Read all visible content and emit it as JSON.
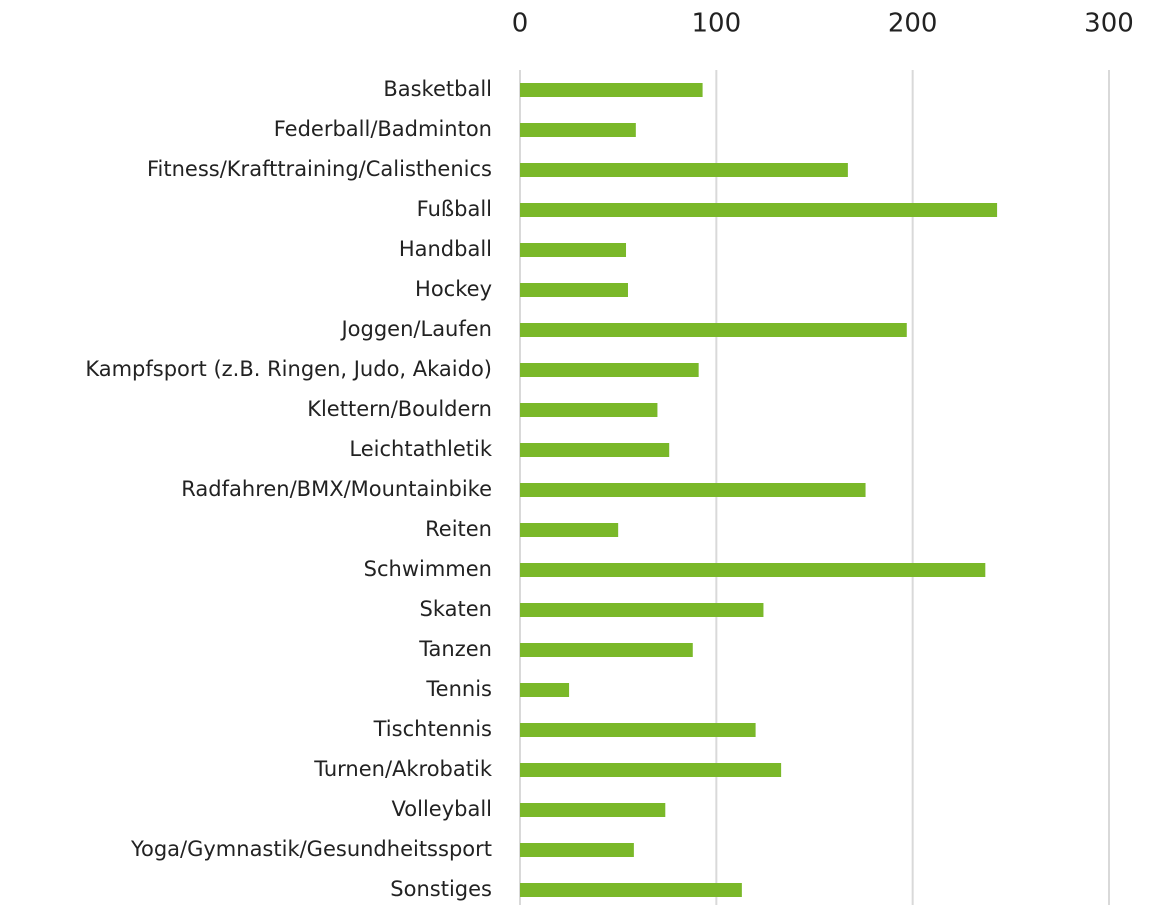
{
  "chart_data": {
    "type": "bar",
    "orientation": "horizontal",
    "categories": [
      "Basketball",
      "Federball/Badminton",
      "Fitness/Krafttraining/Calisthenics",
      "Fußball",
      "Handball",
      "Hockey",
      "Joggen/Laufen",
      "Kampfsport (z.B. Ringen, Judo, Akaido)",
      "Klettern/Bouldern",
      "Leichtathletik",
      "Radfahren/BMX/Mountainbike",
      "Reiten",
      "Schwimmen",
      "Skaten",
      "Tanzen",
      "Tennis",
      "Tischtennis",
      "Turnen/Akrobatik",
      "Volleyball",
      "Yoga/Gymnastik/Gesundheitssport",
      "Sonstiges"
    ],
    "values": [
      93,
      59,
      167,
      243,
      54,
      55,
      197,
      91,
      70,
      76,
      176,
      50,
      237,
      124,
      88,
      25,
      120,
      133,
      74,
      58,
      113
    ],
    "color": "#7ab829",
    "xlim": [
      0,
      300
    ],
    "xticks": [
      0,
      100,
      200,
      300
    ],
    "grid": true
  }
}
